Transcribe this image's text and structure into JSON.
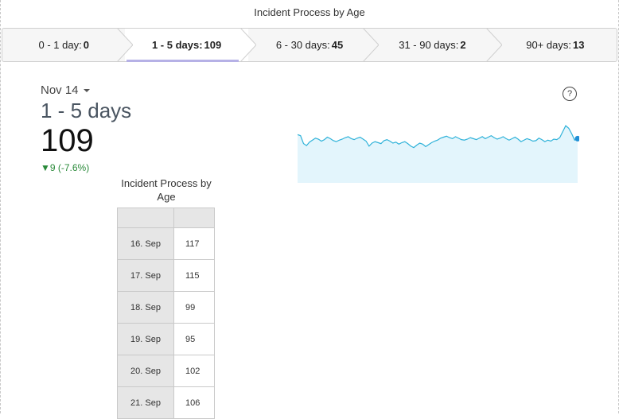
{
  "header": {
    "title": "Incident Process by Age"
  },
  "tabs": [
    {
      "label": "0 - 1 day:",
      "count": "0"
    },
    {
      "label": "1 - 5 days:",
      "count": "109"
    },
    {
      "label": "6 - 30 days:",
      "count": "45"
    },
    {
      "label": "31 - 90 days:",
      "count": "2"
    },
    {
      "label": "90+ days:",
      "count": "13"
    }
  ],
  "selected": {
    "date": "Nov 14",
    "range_label": "1 - 5 days",
    "value": "109",
    "delta": "▼9 (-7.6%)"
  },
  "help": {
    "icon": "question-circle-icon",
    "glyph": "?"
  },
  "colors": {
    "spark_line": "#2fb2d9",
    "spark_fill": "#e3f5fc",
    "spark_dot": "#1f8fd6",
    "delta_down": "#2a8a3a",
    "active_tab_underline": "#b6b1e6"
  },
  "table": {
    "title": "Incident Process by Age",
    "rows": [
      {
        "date": "16. Sep",
        "value": "117"
      },
      {
        "date": "17. Sep",
        "value": "115"
      },
      {
        "date": "18. Sep",
        "value": "99"
      },
      {
        "date": "19. Sep",
        "value": "95"
      },
      {
        "date": "20. Sep",
        "value": "102"
      },
      {
        "date": "21. Sep",
        "value": "106"
      }
    ]
  },
  "chart_data": {
    "type": "area",
    "values": [
      117,
      115,
      99,
      95,
      102,
      106,
      110,
      108,
      104,
      107,
      112,
      109,
      105,
      103,
      106,
      108,
      111,
      113,
      109,
      107,
      110,
      112,
      108,
      104,
      94,
      100,
      103,
      101,
      99,
      105,
      107,
      104,
      100,
      102,
      98,
      101,
      103,
      99,
      94,
      91,
      96,
      100,
      98,
      93,
      97,
      101,
      104,
      106,
      110,
      112,
      114,
      111,
      109,
      113,
      110,
      107,
      106,
      108,
      111,
      109,
      107,
      110,
      113,
      109,
      112,
      115,
      111,
      108,
      110,
      113,
      109,
      106,
      109,
      112,
      108,
      103,
      106,
      109,
      107,
      104,
      105,
      110,
      107,
      103,
      106,
      104,
      108,
      107,
      111,
      123,
      135,
      130,
      119,
      106,
      109
    ]
  }
}
